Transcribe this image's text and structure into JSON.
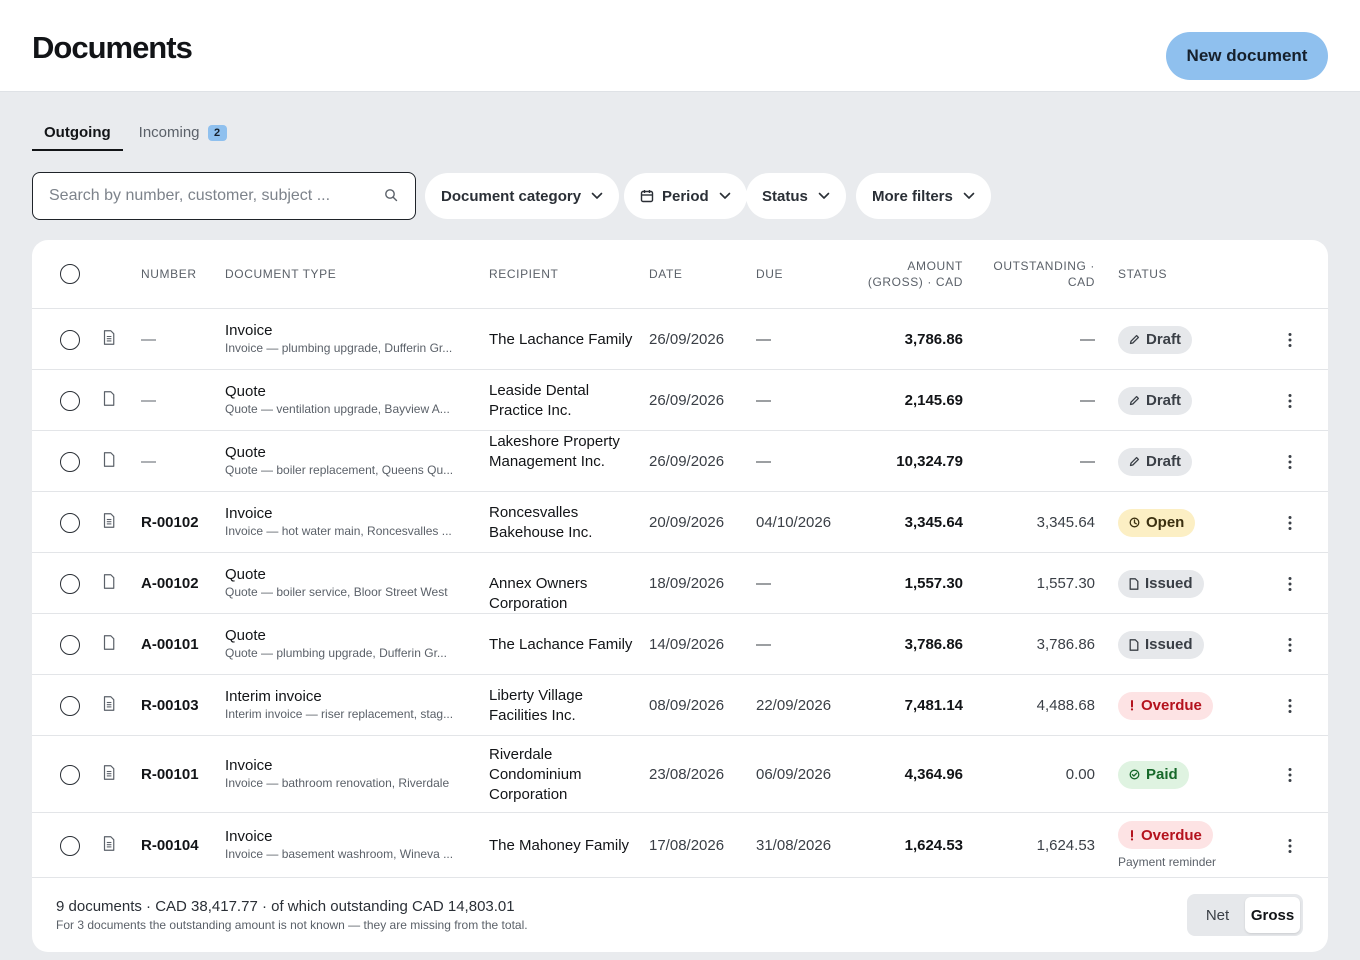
{
  "header": {
    "title": "Documents",
    "new_document_label": "New document"
  },
  "tabs": [
    {
      "label": "Outgoing",
      "active": true
    },
    {
      "label": "Incoming",
      "badge": "2",
      "active": false
    }
  ],
  "search": {
    "placeholder": "Search by number, customer, subject ...",
    "value": ""
  },
  "filters": {
    "category": "Document category",
    "period": "Period",
    "status": "Status",
    "more": "More filters"
  },
  "table": {
    "columns": {
      "number": "NUMBER",
      "document_type": "DOCUMENT TYPE",
      "recipient": "RECIPIENT",
      "date": "DATE",
      "due": "DUE",
      "amount_line1": "AMOUNT",
      "amount_line2": "(GROSS) · CAD",
      "outstanding_line1": "OUTSTANDING ·",
      "outstanding_line2": "CAD",
      "status": "STATUS"
    },
    "rows": [
      {
        "number": "—",
        "type": "Invoice",
        "subtitle": "Invoice — plumbing upgrade, Dufferin Gr...",
        "recipient": "The Lachance Family",
        "date": "26/09/2026",
        "due": "—",
        "amount": "3,786.86",
        "outstanding": "—",
        "status": "Draft",
        "status_kind": "draft",
        "icon": "invoice-doc-icon"
      },
      {
        "number": "—",
        "type": "Quote",
        "subtitle": "Quote — ventilation upgrade, Bayview A...",
        "recipient": "Leaside Dental Practice Inc.",
        "date": "26/09/2026",
        "due": "—",
        "amount": "2,145.69",
        "outstanding": "—",
        "status": "Draft",
        "status_kind": "draft",
        "icon": "quote-doc-icon"
      },
      {
        "number": "—",
        "type": "Quote",
        "subtitle": "Quote — boiler replacement, Queens Qu...",
        "recipient": "Lakeshore Property Management Inc.",
        "date": "26/09/2026",
        "due": "—",
        "amount": "10,324.79",
        "outstanding": "—",
        "status": "Draft",
        "status_kind": "draft",
        "icon": "quote-doc-icon"
      },
      {
        "number": "R-00102",
        "type": "Invoice",
        "subtitle": "Invoice — hot water main, Roncesvalles ...",
        "recipient": "Roncesvalles Bakehouse Inc.",
        "date": "20/09/2026",
        "due": "04/10/2026",
        "amount": "3,345.64",
        "outstanding": "3,345.64",
        "status": "Open",
        "status_kind": "open",
        "icon": "invoice-doc-icon"
      },
      {
        "number": "A-00102",
        "type": "Quote",
        "subtitle": "Quote — boiler service, Bloor Street West",
        "recipient": "Annex Owners Corporation",
        "date": "18/09/2026",
        "due": "—",
        "amount": "1,557.30",
        "outstanding": "1,557.30",
        "status": "Issued",
        "status_kind": "issued",
        "icon": "quote-doc-icon"
      },
      {
        "number": "A-00101",
        "type": "Quote",
        "subtitle": "Quote — plumbing upgrade, Dufferin Gr...",
        "recipient": "The Lachance Family",
        "date": "14/09/2026",
        "due": "—",
        "amount": "3,786.86",
        "outstanding": "3,786.86",
        "status": "Issued",
        "status_kind": "issued",
        "icon": "quote-doc-icon"
      },
      {
        "number": "R-00103",
        "type": "Interim invoice",
        "subtitle": "Interim invoice — riser replacement, stag...",
        "recipient": "Liberty Village Facilities Inc.",
        "date": "08/09/2026",
        "due": "22/09/2026",
        "amount": "7,481.14",
        "outstanding": "4,488.68",
        "status": "Overdue",
        "status_kind": "overdue",
        "icon": "invoice-doc-icon"
      },
      {
        "number": "R-00101",
        "type": "Invoice",
        "subtitle": "Invoice — bathroom renovation, Riverdale",
        "recipient": "Riverdale Condominium Corporation",
        "date": "23/08/2026",
        "due": "06/09/2026",
        "amount": "4,364.96",
        "outstanding": "0.00",
        "status": "Paid",
        "status_kind": "paid",
        "icon": "invoice-doc-icon"
      },
      {
        "number": "R-00104",
        "type": "Invoice",
        "subtitle": "Invoice — basement washroom, Wineva ...",
        "recipient": "The Mahoney Family",
        "date": "17/08/2026",
        "due": "31/08/2026",
        "amount": "1,624.53",
        "outstanding": "1,624.53",
        "status": "Overdue",
        "status_kind": "overdue",
        "note": "Payment reminder",
        "icon": "invoice-doc-icon"
      }
    ]
  },
  "footer": {
    "summary": "9 documents · CAD 38,417.77 · of which outstanding CAD 14,803.01",
    "note": "For 3 documents the outstanding amount is not known — they are missing from the total.",
    "toggle": {
      "net": "Net",
      "gross": "Gross",
      "active": "gross"
    }
  },
  "colors": {
    "accent": "#8fc0ee",
    "draft_bg": "#e6e8eb",
    "open_bg": "#fcefc4",
    "overdue_bg": "#fde3e4",
    "overdue_text": "#b4121d",
    "paid_bg": "#dff3e1",
    "paid_text": "#17692a"
  }
}
